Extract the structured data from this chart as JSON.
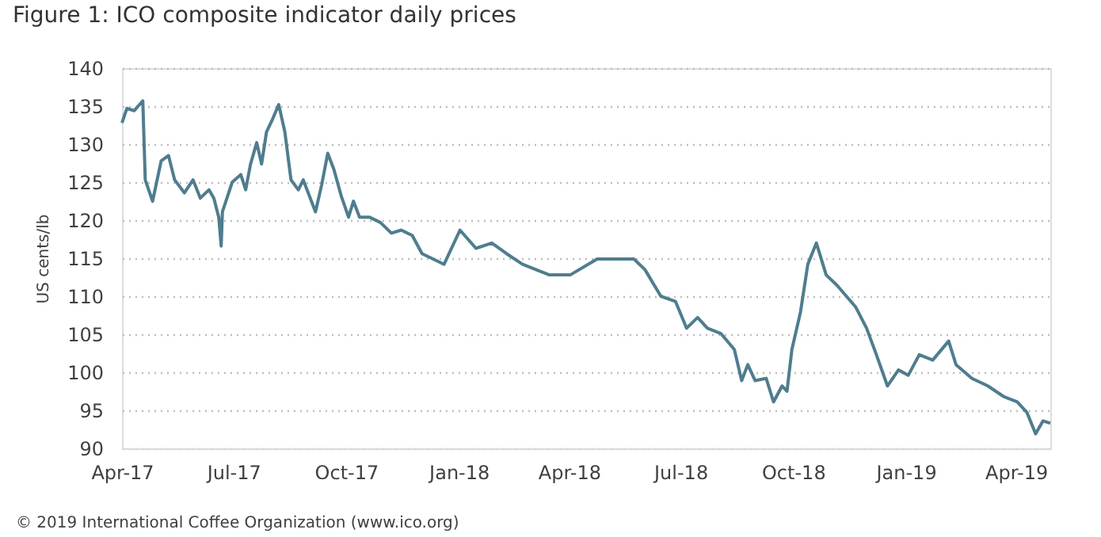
{
  "chart_data": {
    "type": "line",
    "title": "Figure 1: ICO composite indicator daily prices",
    "ylabel": "US cents/lb",
    "annotations": [
      "© 2019 International Coffee Organization (www.ico.org)"
    ],
    "x": [
      "2017-04-01",
      "2017-04-05",
      "2017-04-11",
      "2017-04-18",
      "2017-04-20",
      "2017-04-26",
      "2017-05-03",
      "2017-05-09",
      "2017-05-14",
      "2017-05-22",
      "2017-05-29",
      "2017-06-04",
      "2017-06-11",
      "2017-06-15",
      "2017-06-19",
      "2017-06-21",
      "2017-06-22",
      "2017-06-30",
      "2017-07-07",
      "2017-07-11",
      "2017-07-15",
      "2017-07-20",
      "2017-07-24",
      "2017-07-28",
      "2017-08-02",
      "2017-08-07",
      "2017-08-12",
      "2017-08-17",
      "2017-08-23",
      "2017-08-27",
      "2017-09-01",
      "2017-09-06",
      "2017-09-11",
      "2017-09-16",
      "2017-09-21",
      "2017-09-27",
      "2017-10-03",
      "2017-10-07",
      "2017-10-12",
      "2017-10-20",
      "2017-10-29",
      "2017-11-07",
      "2017-11-15",
      "2017-11-24",
      "2017-12-02",
      "2017-12-20",
      "2018-01-02",
      "2018-01-15",
      "2018-01-28",
      "2018-02-09",
      "2018-02-22",
      "2018-03-16",
      "2018-04-02",
      "2018-04-24",
      "2018-05-24",
      "2018-06-02",
      "2018-06-15",
      "2018-06-27",
      "2018-07-06",
      "2018-07-15",
      "2018-07-23",
      "2018-08-03",
      "2018-08-14",
      "2018-08-20",
      "2018-08-25",
      "2018-08-31",
      "2018-09-09",
      "2018-09-15",
      "2018-09-22",
      "2018-09-26",
      "2018-09-30",
      "2018-10-07",
      "2018-10-13",
      "2018-10-20",
      "2018-10-28",
      "2018-11-06",
      "2018-11-21",
      "2018-11-30",
      "2018-12-08",
      "2018-12-17",
      "2018-12-26",
      "2019-01-03",
      "2019-01-12",
      "2019-01-23",
      "2019-02-05",
      "2019-02-11",
      "2019-02-24",
      "2019-03-09",
      "2019-03-22",
      "2019-04-02",
      "2019-04-10",
      "2019-04-17",
      "2019-04-23",
      "2019-04-29"
    ],
    "series": [
      {
        "color": "#4f7d8e",
        "values": [
          132.8,
          134.7,
          134.4,
          135.7,
          125.3,
          122.5,
          127.8,
          128.5,
          125.3,
          123.6,
          125.3,
          122.9,
          124.0,
          122.9,
          120.4,
          116.6,
          121.1,
          125.0,
          126.0,
          124.0,
          127.4,
          130.2,
          127.4,
          131.6,
          133.3,
          135.2,
          131.6,
          125.3,
          124.0,
          125.3,
          123.2,
          121.1,
          124.6,
          128.8,
          126.7,
          123.2,
          120.4,
          122.5,
          120.4,
          120.4,
          119.7,
          118.3,
          118.7,
          118.0,
          115.6,
          114.2,
          118.7,
          116.3,
          117.0,
          115.6,
          114.2,
          112.8,
          112.8,
          114.9,
          114.9,
          113.5,
          110.0,
          109.3,
          105.8,
          107.2,
          105.8,
          105.1,
          103.0,
          98.9,
          101.0,
          98.9,
          99.2,
          96.1,
          98.2,
          97.5,
          103.0,
          107.9,
          114.2,
          117.0,
          112.8,
          111.4,
          108.6,
          105.8,
          102.3,
          98.2,
          100.3,
          99.6,
          102.3,
          101.6,
          104.1,
          101.0,
          99.2,
          98.2,
          96.8,
          96.1,
          94.7,
          91.9,
          93.6,
          93.3
        ]
      }
    ],
    "xlim": [
      "2017-04-01",
      "2019-04-29"
    ],
    "xticks": [
      {
        "value": "2017-04-01",
        "label": "Apr-17"
      },
      {
        "value": "2017-07-01",
        "label": "Jul-17"
      },
      {
        "value": "2017-10-01",
        "label": "Oct-17"
      },
      {
        "value": "2018-01-01",
        "label": "Jan-18"
      },
      {
        "value": "2018-04-01",
        "label": "Apr-18"
      },
      {
        "value": "2018-07-01",
        "label": "Jul-18"
      },
      {
        "value": "2018-10-01",
        "label": "Oct-18"
      },
      {
        "value": "2019-01-01",
        "label": "Jan-19"
      },
      {
        "value": "2019-04-01",
        "label": "Apr-19"
      }
    ],
    "ylim": [
      90,
      140
    ],
    "yticks": [
      90,
      95,
      100,
      105,
      110,
      115,
      120,
      125,
      130,
      135,
      140
    ],
    "grid": "y",
    "legend": false,
    "line_style": "solid",
    "marker": "none"
  }
}
